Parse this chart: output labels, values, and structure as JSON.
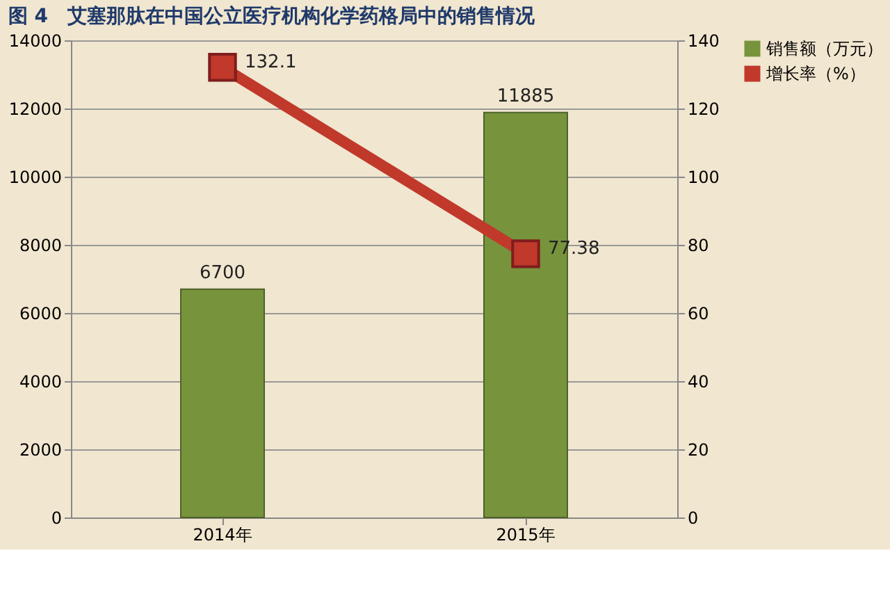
{
  "chart_data": {
    "type": "bar",
    "title": "图 4　艾塞那肽在中国公立医疗机构化学药格局中的销售情况",
    "categories": [
      "2014年",
      "2015年"
    ],
    "series": [
      {
        "name": "销售额（万元）",
        "color": "#77933c",
        "values": [
          6700,
          11885
        ]
      },
      {
        "name": "增长率（%）",
        "color": "#c0392b",
        "values": [
          132.1,
          77.38
        ],
        "type": "line",
        "axis": "y2"
      }
    ],
    "ylim": [
      0,
      14000
    ],
    "yticks": [
      0,
      2000,
      4000,
      6000,
      8000,
      10000,
      12000,
      14000
    ],
    "y2lim": [
      0,
      140
    ],
    "y2ticks": [
      0,
      20,
      40,
      60,
      80,
      100,
      120,
      140
    ],
    "grid": "y",
    "legend": "right",
    "marker": "square",
    "data_labels": true
  }
}
